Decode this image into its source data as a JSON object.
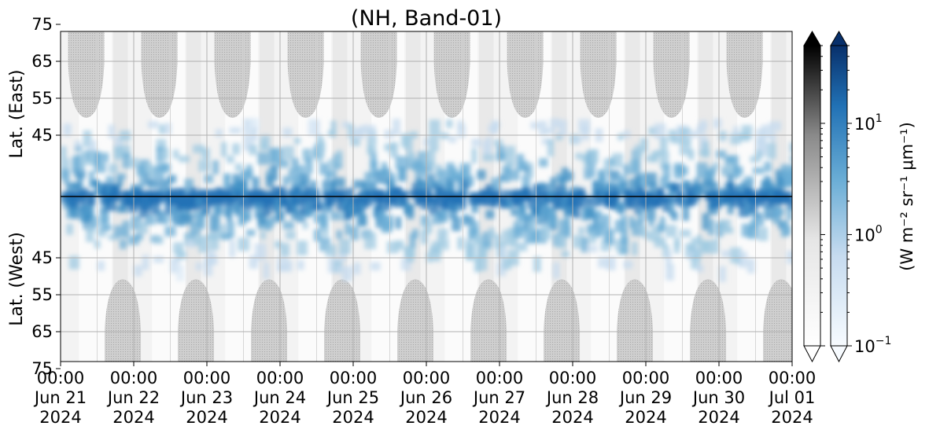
{
  "chart_data": {
    "type": "heatmap",
    "title": "(NH, Band-01)",
    "y_axis": {
      "upper_label": "Lat. (East)",
      "lower_label": "Lat. (West)",
      "upper_ticks": [
        "45",
        "55",
        "65",
        "75"
      ],
      "lower_ticks": [
        "75",
        "65",
        "55",
        "45"
      ]
    },
    "x_axis": {
      "ticks": [
        {
          "time": "00:00",
          "date": "Jun 21",
          "year": "2024"
        },
        {
          "time": "00:00",
          "date": "Jun 22",
          "year": "2024"
        },
        {
          "time": "00:00",
          "date": "Jun 23",
          "year": "2024"
        },
        {
          "time": "00:00",
          "date": "Jun 24",
          "year": "2024"
        },
        {
          "time": "00:00",
          "date": "Jun 25",
          "year": "2024"
        },
        {
          "time": "00:00",
          "date": "Jun 26",
          "year": "2024"
        },
        {
          "time": "00:00",
          "date": "Jun 27",
          "year": "2024"
        },
        {
          "time": "00:00",
          "date": "Jun 28",
          "year": "2024"
        },
        {
          "time": "00:00",
          "date": "Jun 29",
          "year": "2024"
        },
        {
          "time": "00:00",
          "date": "Jun 30",
          "year": "2024"
        },
        {
          "time": "00:00",
          "date": "Jul 01",
          "year": "2024"
        }
      ],
      "range": [
        "2024-06-21T00:00",
        "2024-07-01T00:00"
      ]
    },
    "colorbar": {
      "label": "(W m⁻² sr⁻¹ μm⁻¹)",
      "scale": "log",
      "range": [
        0.1,
        50
      ],
      "tick_labels": [
        {
          "base": "10",
          "exp": "1",
          "value": 10
        },
        {
          "base": "10",
          "exp": "0",
          "value": 1
        },
        {
          "base": "10",
          "exp": "−1",
          "value": 0.1
        }
      ],
      "gray_colors": [
        "#ffffff",
        "#000000"
      ],
      "blue_colors": [
        "#f7fbff",
        "#08306b"
      ]
    },
    "grid": true,
    "accent_color": "#2171b5"
  }
}
